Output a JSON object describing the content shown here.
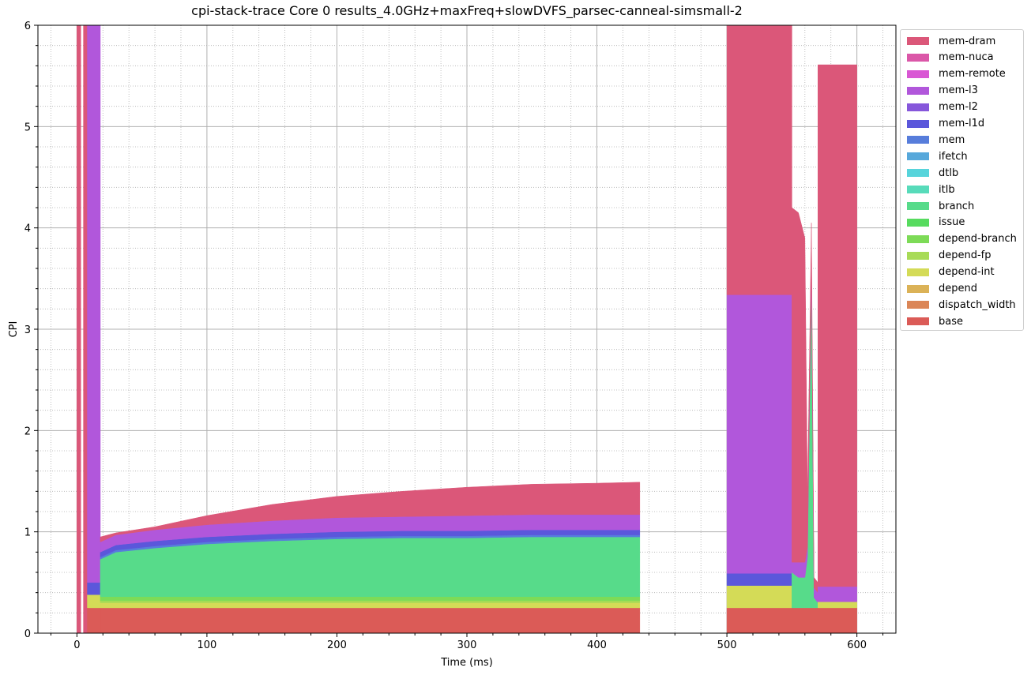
{
  "chart_data": {
    "type": "area",
    "title": "cpi-stack-trace Core 0 results_4.0GHz+maxFreq+slowDVFS_parsec-canneal-simsmall-2",
    "xlabel": "Time (ms)",
    "ylabel": "CPI",
    "xlim": [
      -30,
      630
    ],
    "ylim": [
      0,
      6
    ],
    "x_ticks": [
      "0",
      "100",
      "200",
      "300",
      "400",
      "500",
      "600"
    ],
    "y_ticks": [
      "0",
      "1",
      "2",
      "3",
      "4",
      "5",
      "6"
    ],
    "grid": "major solid, minor dotted",
    "legend_position": "outside upper right",
    "stacking_order": [
      "base",
      "dispatch_width",
      "depend",
      "depend-int",
      "depend-fp",
      "depend-branch",
      "issue",
      "branch",
      "itlb",
      "dtlb",
      "ifetch",
      "mem",
      "mem-l1d",
      "mem-l2",
      "mem-l3",
      "mem-remote",
      "mem-nuca",
      "mem-dram"
    ],
    "legend": [
      {
        "name": "mem-dram",
        "color": "#db5779"
      },
      {
        "name": "mem-nuca",
        "color": "#db57a8"
      },
      {
        "name": "mem-remote",
        "color": "#d957d4"
      },
      {
        "name": "mem-l3",
        "color": "#b157db"
      },
      {
        "name": "mem-l2",
        "color": "#8657db"
      },
      {
        "name": "mem-l1d",
        "color": "#5b57db"
      },
      {
        "name": "mem",
        "color": "#577ddb"
      },
      {
        "name": "ifetch",
        "color": "#57a8db"
      },
      {
        "name": "dtlb",
        "color": "#57d4db"
      },
      {
        "name": "itlb",
        "color": "#57dbba"
      },
      {
        "name": "branch",
        "color": "#57db8a"
      },
      {
        "name": "issue",
        "color": "#57db5f"
      },
      {
        "name": "depend-branch",
        "color": "#7ddb57"
      },
      {
        "name": "depend-fp",
        "color": "#a8db57"
      },
      {
        "name": "depend-int",
        "color": "#d4db57"
      },
      {
        "name": "depend",
        "color": "#dbb257"
      },
      {
        "name": "dispatch_width",
        "color": "#db8657"
      },
      {
        "name": "base",
        "color": "#db5b57"
      }
    ],
    "segments": [
      {
        "x_start": 0,
        "x_end": 3,
        "stacks": {
          "mem-dram": 6.2
        }
      },
      {
        "x_start": 5,
        "x_end": 8,
        "stacks": {
          "mem-dram": 6.2
        }
      },
      {
        "x_start": 8,
        "x_end": 18,
        "stacks": {
          "base": 0.25,
          "depend-int": 0.13,
          "mem-l1d": 0.12,
          "mem-l3": 5.7
        }
      },
      {
        "x_start": 18,
        "x_end": 433,
        "stacks_over_time": {
          "x": [
            18,
            30,
            60,
            100,
            150,
            200,
            250,
            300,
            350,
            400,
            433
          ],
          "base": [
            0.25,
            0.25,
            0.25,
            0.25,
            0.25,
            0.25,
            0.25,
            0.25,
            0.25,
            0.25,
            0.25
          ],
          "depend-int": [
            0.05,
            0.05,
            0.05,
            0.05,
            0.05,
            0.05,
            0.05,
            0.05,
            0.05,
            0.05,
            0.05
          ],
          "depend-fp": [
            0.02,
            0.02,
            0.02,
            0.02,
            0.02,
            0.02,
            0.02,
            0.02,
            0.02,
            0.02,
            0.02
          ],
          "depend-branch": [
            0.04,
            0.04,
            0.04,
            0.04,
            0.04,
            0.04,
            0.04,
            0.04,
            0.04,
            0.04,
            0.04
          ],
          "branch": [
            0.37,
            0.44,
            0.48,
            0.52,
            0.55,
            0.57,
            0.58,
            0.58,
            0.59,
            0.59,
            0.59
          ],
          "mem": [
            0.02,
            0.02,
            0.02,
            0.02,
            0.02,
            0.02,
            0.02,
            0.02,
            0.02,
            0.02,
            0.02
          ],
          "mem-l1d": [
            0.05,
            0.05,
            0.05,
            0.05,
            0.05,
            0.05,
            0.05,
            0.05,
            0.05,
            0.05,
            0.05
          ],
          "mem-l3": [
            0.1,
            0.1,
            0.11,
            0.12,
            0.13,
            0.14,
            0.14,
            0.15,
            0.15,
            0.15,
            0.15
          ],
          "mem-dram": [
            0.05,
            0.02,
            0.03,
            0.09,
            0.16,
            0.21,
            0.25,
            0.28,
            0.3,
            0.31,
            0.32
          ]
        }
      },
      {
        "x_start": 500,
        "x_end": 550,
        "stacks": {
          "base": 0.25,
          "depend-int": 0.22,
          "mem-l1d": 0.12,
          "mem-l3": 2.75,
          "mem-dram": 2.8
        }
      },
      {
        "x_start": 550,
        "x_end": 570,
        "note_free": true,
        "stacks_over_time": {
          "x": [
            550,
            555,
            560,
            562,
            565,
            567,
            570
          ],
          "base": [
            0.25,
            0.25,
            0.25,
            0.25,
            0.25,
            0.25,
            0.25
          ],
          "branch": [
            0.35,
            0.3,
            0.3,
            0.5,
            3.3,
            0.1,
            0.05
          ],
          "mem-l3": [
            0.1,
            0.15,
            0.15,
            0.1,
            0.1,
            0.1,
            0.1
          ],
          "mem-dram": [
            3.5,
            3.45,
            3.2,
            0.5,
            0.4,
            0.1,
            0.1
          ]
        }
      },
      {
        "x_start": 570,
        "x_end": 600,
        "stacks": {
          "base": 0.25,
          "depend-int": 0.06,
          "mem-l3": 0.15,
          "mem-dram": 5.15
        }
      }
    ]
  }
}
